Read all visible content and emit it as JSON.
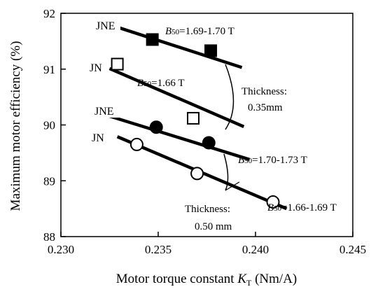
{
  "chart_data": {
    "type": "scatter",
    "xlabel": "Motor torque constant",
    "xlabel_symbol": "K",
    "xlabel_sub": "T",
    "xlabel_unit": " (Nm/A)",
    "ylabel": "Maximum motor efficiency (%)",
    "xlim": [
      0.23,
      0.245
    ],
    "ylim": [
      88,
      92
    ],
    "x_ticks": [
      0.23,
      0.235,
      0.24,
      0.245
    ],
    "x_tick_labels": [
      "0.230",
      "0.235",
      "0.240",
      "0.245"
    ],
    "y_ticks": [
      88,
      89,
      90,
      91,
      92
    ],
    "y_tick_labels": [
      "88",
      "89",
      "90",
      "91",
      "92"
    ],
    "grid": false,
    "series": [
      {
        "name": "JNE",
        "marker": "filled-square",
        "points": [
          [
            0.2347,
            91.53
          ],
          [
            0.2377,
            91.33
          ]
        ],
        "trend": [
          [
            0.2322,
            91.83
          ],
          [
            0.2393,
            91.03
          ]
        ],
        "annotation": {
          "B": "B",
          "sub": "50",
          "text": "=1.69-1.70 T"
        }
      },
      {
        "name": "JN",
        "marker": "open-square",
        "points": [
          [
            0.2329,
            91.09
          ],
          [
            0.2368,
            90.12
          ]
        ],
        "trend": [
          [
            0.2325,
            91.01
          ],
          [
            0.2394,
            89.97
          ]
        ],
        "annotation": {
          "B": "B",
          "sub": "50",
          "text": "=1.66 T"
        }
      },
      {
        "name": "JNE",
        "marker": "filled-circle",
        "points": [
          [
            0.2349,
            89.96
          ],
          [
            0.2376,
            89.68
          ]
        ],
        "trend": [
          [
            0.2322,
            90.19
          ],
          [
            0.2397,
            89.38
          ]
        ],
        "annotation": {
          "B": "B",
          "sub": "50",
          "text": "=1.70-1.73 T"
        }
      },
      {
        "name": "JN",
        "marker": "open-circle",
        "points": [
          [
            0.2339,
            89.65
          ],
          [
            0.237,
            89.13
          ],
          [
            0.2409,
            88.62
          ]
        ],
        "trend": [
          [
            0.2329,
            89.79
          ],
          [
            0.2416,
            88.5
          ]
        ],
        "annotation": {
          "B": "B",
          "sub": "50",
          "text": "=1.66-1.69 T"
        }
      }
    ],
    "notes": [
      {
        "lines": [
          "Thickness:",
          "0.35mm"
        ]
      },
      {
        "lines": [
          "Thickness:",
          "0.50 mm"
        ]
      }
    ]
  }
}
